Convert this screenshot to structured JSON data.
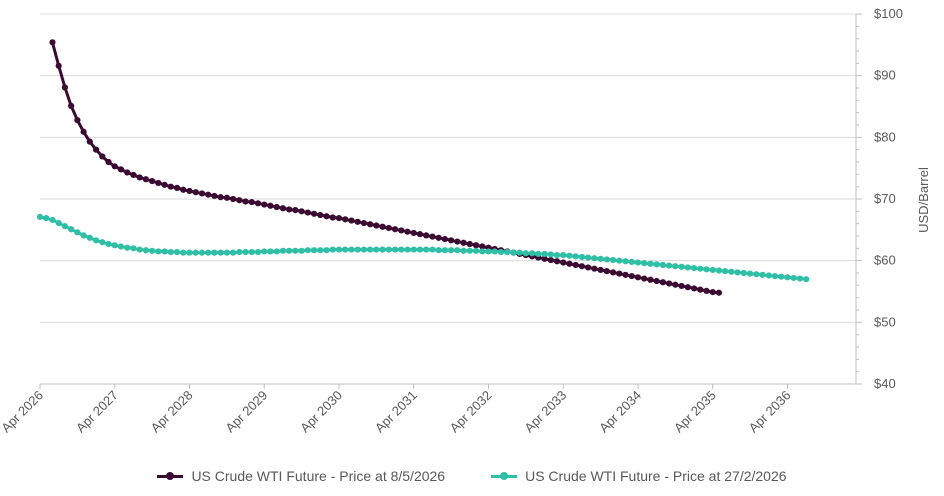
{
  "chart_data": {
    "type": "line",
    "title": "",
    "xlabel": "",
    "ylabel": "USD/Barrel",
    "yaxis_position": "right",
    "ylim": [
      40,
      100
    ],
    "yticks": [
      40,
      50,
      60,
      70,
      80,
      90,
      100
    ],
    "ytick_labels": [
      "$40",
      "$50",
      "$60",
      "$70",
      "$80",
      "$90",
      "$100"
    ],
    "xlim": [
      "2026-04",
      "2037-03"
    ],
    "xticks": [
      "2026-04",
      "2027-04",
      "2028-04",
      "2029-04",
      "2030-04",
      "2031-04",
      "2032-04",
      "2033-04",
      "2034-04",
      "2035-04",
      "2036-04"
    ],
    "xtick_labels": [
      "Apr 2026",
      "Apr 2027",
      "Apr 2028",
      "Apr 2029",
      "Apr 2030",
      "Apr 2031",
      "Apr 2032",
      "Apr 2033",
      "Apr 2034",
      "Apr 2035",
      "Apr 2036"
    ],
    "grid": "horizontal",
    "legend": "bottom",
    "series": [
      {
        "name": "US Crude WTI Future - Price at 8/5/2026",
        "color": "#3b0a33",
        "start": "2026-06",
        "values": [
          95.4,
          91.6,
          88.1,
          85.1,
          82.8,
          80.9,
          79.3,
          78.0,
          76.9,
          76.0,
          75.3,
          74.8,
          74.3,
          73.9,
          73.5,
          73.2,
          72.9,
          72.6,
          72.3,
          72.0,
          71.8,
          71.5,
          71.3,
          71.1,
          70.9,
          70.7,
          70.5,
          70.3,
          70.2,
          70.0,
          69.8,
          69.6,
          69.5,
          69.3,
          69.1,
          68.9,
          68.7,
          68.5,
          68.3,
          68.2,
          68.0,
          67.8,
          67.6,
          67.4,
          67.2,
          67.0,
          66.9,
          66.7,
          66.5,
          66.3,
          66.1,
          65.9,
          65.7,
          65.5,
          65.3,
          65.1,
          64.9,
          64.7,
          64.5,
          64.3,
          64.1,
          63.9,
          63.7,
          63.5,
          63.3,
          63.1,
          62.9,
          62.7,
          62.5,
          62.3,
          62.1,
          61.9,
          61.7,
          61.5,
          61.3,
          61.1,
          60.9,
          60.7,
          60.5,
          60.3,
          60.1,
          59.9,
          59.7,
          59.5,
          59.3,
          59.1,
          58.9,
          58.7,
          58.5,
          58.3,
          58.1,
          57.9,
          57.7,
          57.5,
          57.3,
          57.1,
          56.9,
          56.7,
          56.5,
          56.3,
          56.1,
          55.9,
          55.7,
          55.5,
          55.3,
          55.1,
          54.9,
          54.8
        ]
      },
      {
        "name": "US Crude WTI Future - Price at 27/2/2026",
        "color": "#2fbfa7",
        "start": "2026-04",
        "values": [
          67.1,
          66.9,
          66.6,
          66.1,
          65.6,
          65.1,
          64.6,
          64.1,
          63.7,
          63.3,
          63.0,
          62.7,
          62.5,
          62.3,
          62.1,
          62.0,
          61.8,
          61.7,
          61.6,
          61.5,
          61.5,
          61.4,
          61.4,
          61.3,
          61.3,
          61.3,
          61.3,
          61.3,
          61.3,
          61.3,
          61.3,
          61.3,
          61.4,
          61.4,
          61.4,
          61.4,
          61.5,
          61.5,
          61.5,
          61.6,
          61.6,
          61.6,
          61.6,
          61.7,
          61.7,
          61.7,
          61.7,
          61.8,
          61.8,
          61.8,
          61.8,
          61.8,
          61.8,
          61.8,
          61.8,
          61.8,
          61.8,
          61.8,
          61.8,
          61.8,
          61.8,
          61.8,
          61.8,
          61.8,
          61.7,
          61.7,
          61.7,
          61.7,
          61.6,
          61.6,
          61.6,
          61.5,
          61.5,
          61.5,
          61.4,
          61.4,
          61.3,
          61.3,
          61.2,
          61.2,
          61.1,
          61.1,
          61.0,
          60.9,
          60.9,
          60.8,
          60.7,
          60.6,
          60.5,
          60.4,
          60.3,
          60.2,
          60.1,
          60.0,
          59.9,
          59.8,
          59.7,
          59.6,
          59.5,
          59.4,
          59.3,
          59.2,
          59.1,
          59.0,
          58.9,
          58.8,
          58.7,
          58.6,
          58.5,
          58.4,
          58.3,
          58.2,
          58.1,
          58.0,
          57.9,
          57.8,
          57.7,
          57.6,
          57.5,
          57.4,
          57.3,
          57.2,
          57.1,
          57.0
        ]
      }
    ]
  }
}
